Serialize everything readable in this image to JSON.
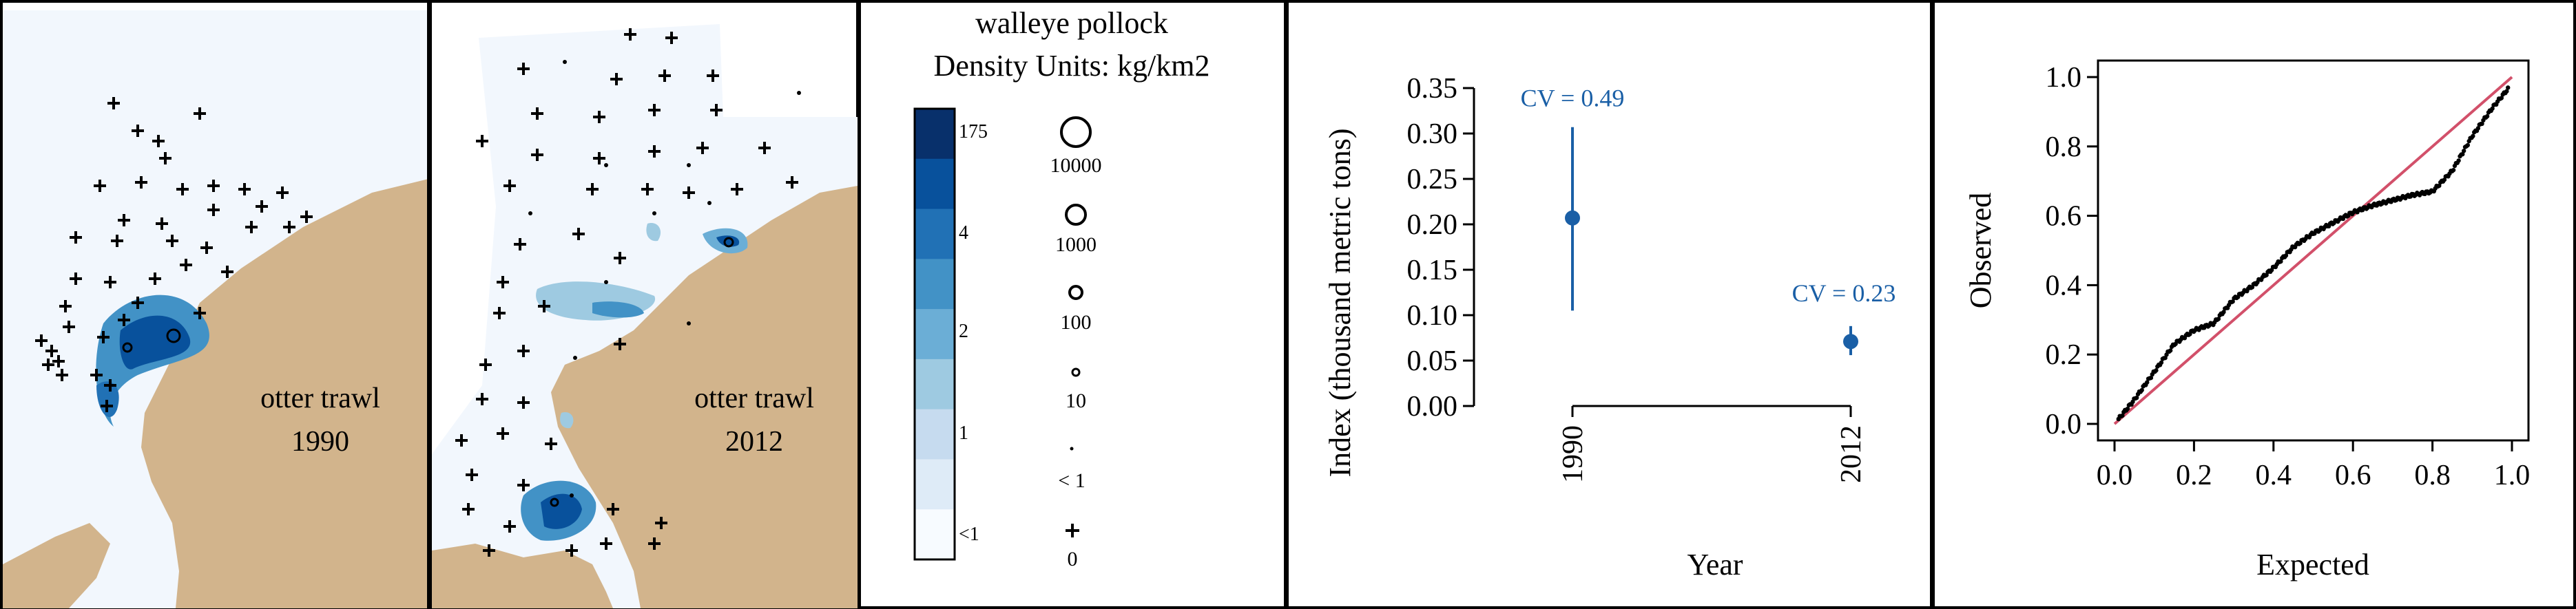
{
  "colors": {
    "land": "#d2b48c",
    "water": "#f2f7fd",
    "accent": "#1a5fa6",
    "diag_line": "#d2506a",
    "ramp": [
      "#f7fbff",
      "#deebf7",
      "#c6dbef",
      "#9ecae1",
      "#6baed6",
      "#4292c6",
      "#2171b5",
      "#08519c",
      "#08306b"
    ]
  },
  "maps": [
    {
      "label_line1": "otter trawl",
      "label_line2": "1990"
    },
    {
      "label_line1": "otter trawl",
      "label_line2": "2012"
    }
  ],
  "legend": {
    "title_line1": "walleye pollock",
    "title_line2": "Density Units: kg/km2",
    "color_ticks": [
      "175",
      "4",
      "2",
      "1",
      "<1"
    ],
    "size_labels": [
      "10000",
      "1000",
      "100",
      "10",
      "< 1",
      "0"
    ]
  },
  "chart_data": [
    {
      "type": "scatter",
      "xlabel": "Year",
      "ylabel": "Index (thousand metric tons)",
      "ylim": [
        0,
        0.35
      ],
      "yticks": [
        "0.00",
        "0.05",
        "0.10",
        "0.15",
        "0.20",
        "0.25",
        "0.30",
        "0.35"
      ],
      "x": [
        "1990",
        "2012"
      ],
      "y": [
        0.207,
        0.071
      ],
      "lower": [
        0.105,
        0.056
      ],
      "upper": [
        0.307,
        0.088
      ],
      "annotations": [
        "CV = 0.49",
        "CV = 0.23"
      ]
    },
    {
      "type": "scatter",
      "xlabel": "Expected",
      "ylabel": "Observed",
      "xlim": [
        0,
        1
      ],
      "ylim": [
        0,
        1
      ],
      "xticks": [
        "0.0",
        "0.2",
        "0.4",
        "0.6",
        "0.8",
        "1.0"
      ],
      "yticks": [
        "0.0",
        "0.2",
        "0.4",
        "0.6",
        "0.8",
        "1.0"
      ],
      "curve": [
        [
          0.0,
          0.0
        ],
        [
          0.05,
          0.07
        ],
        [
          0.1,
          0.15
        ],
        [
          0.15,
          0.23
        ],
        [
          0.2,
          0.27
        ],
        [
          0.25,
          0.29
        ],
        [
          0.3,
          0.36
        ],
        [
          0.35,
          0.4
        ],
        [
          0.4,
          0.45
        ],
        [
          0.45,
          0.51
        ],
        [
          0.5,
          0.55
        ],
        [
          0.55,
          0.58
        ],
        [
          0.6,
          0.61
        ],
        [
          0.65,
          0.63
        ],
        [
          0.7,
          0.645
        ],
        [
          0.75,
          0.66
        ],
        [
          0.8,
          0.67
        ],
        [
          0.85,
          0.73
        ],
        [
          0.9,
          0.83
        ],
        [
          0.95,
          0.91
        ],
        [
          1.0,
          0.98
        ]
      ]
    }
  ]
}
